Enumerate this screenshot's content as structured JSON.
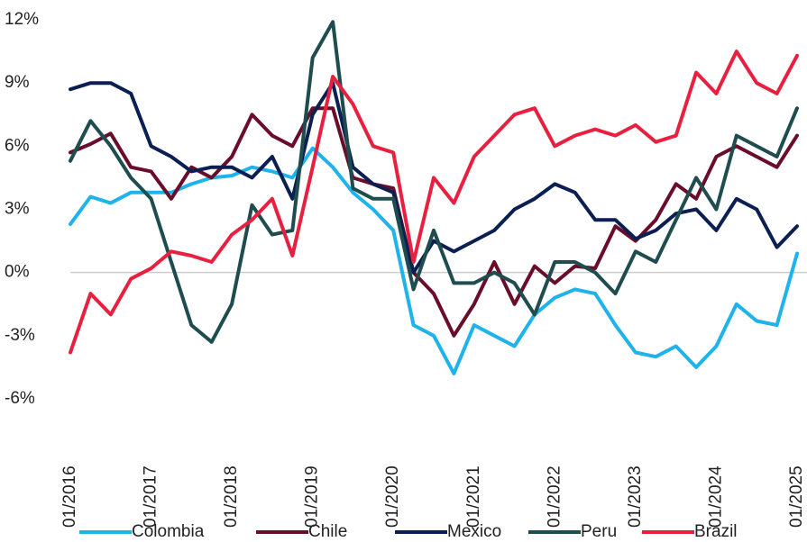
{
  "chart_data": {
    "type": "line",
    "x": [
      "01/2016",
      "04/2016",
      "07/2016",
      "10/2016",
      "01/2017",
      "04/2017",
      "07/2017",
      "10/2017",
      "01/2018",
      "04/2018",
      "07/2018",
      "10/2018",
      "01/2019",
      "04/2019",
      "07/2019",
      "10/2019",
      "01/2020",
      "04/2020",
      "07/2020",
      "10/2020",
      "01/2021",
      "04/2021",
      "07/2021",
      "10/2021",
      "01/2022",
      "04/2022",
      "07/2022",
      "10/2022",
      "01/2023",
      "04/2023",
      "07/2023",
      "10/2023",
      "01/2024",
      "04/2024",
      "07/2024",
      "10/2024",
      "01/2025"
    ],
    "series": [
      {
        "name": "Colombia",
        "color": "#1eb3ea",
        "values": [
          2.3,
          3.6,
          3.3,
          3.8,
          3.8,
          3.8,
          4.2,
          4.5,
          4.6,
          5.0,
          4.8,
          4.5,
          5.9,
          5.0,
          3.8,
          3.0,
          2.0,
          -2.5,
          -3.0,
          -4.8,
          -2.5,
          -3.0,
          -3.5,
          -2.0,
          -1.2,
          -0.8,
          -1.0,
          -2.5,
          -3.8,
          -4.0,
          -3.5,
          -4.5,
          -3.5,
          -1.5,
          -2.3,
          -2.5,
          0.9
        ]
      },
      {
        "name": "Chile",
        "color": "#6a0d2b",
        "values": [
          5.7,
          6.1,
          6.6,
          5.0,
          4.8,
          3.5,
          5.0,
          4.5,
          5.5,
          7.5,
          6.5,
          6.0,
          7.8,
          7.8,
          4.5,
          4.2,
          4.0,
          0.0,
          -1.0,
          -3.0,
          -1.5,
          0.5,
          -1.5,
          0.3,
          -0.5,
          0.3,
          0.2,
          2.2,
          1.5,
          2.5,
          4.2,
          3.5,
          5.5,
          6.0,
          5.5,
          5.0,
          6.5
        ]
      },
      {
        "name": "Mexico",
        "color": "#0c1f52",
        "values": [
          8.7,
          9.0,
          9.0,
          8.5,
          6.0,
          5.5,
          4.8,
          5.0,
          5.0,
          4.5,
          5.5,
          3.5,
          7.5,
          9.0,
          5.0,
          4.2,
          3.8,
          0.0,
          1.5,
          1.0,
          1.5,
          2.0,
          3.0,
          3.5,
          4.2,
          3.8,
          2.5,
          2.5,
          1.6,
          2.0,
          2.8,
          3.0,
          2.0,
          3.5,
          3.0,
          1.2,
          2.2
        ]
      },
      {
        "name": "Peru",
        "color": "#1f4d4f",
        "values": [
          5.3,
          7.2,
          6.0,
          4.5,
          3.5,
          0.5,
          -2.5,
          -3.3,
          -1.5,
          3.2,
          1.8,
          2.0,
          10.2,
          11.9,
          4.0,
          3.5,
          3.5,
          -0.8,
          2.0,
          -0.5,
          -0.5,
          0.0,
          -0.5,
          -2.0,
          0.5,
          0.5,
          0.0,
          -1.0,
          1.0,
          0.5,
          2.5,
          4.5,
          3.0,
          6.5,
          6.0,
          5.5,
          7.8
        ]
      },
      {
        "name": "Brazil",
        "color": "#e8203f",
        "values": [
          -3.8,
          -1.0,
          -2.0,
          -0.3,
          0.2,
          1.0,
          0.8,
          0.5,
          1.8,
          2.5,
          3.5,
          0.8,
          5.0,
          9.3,
          8.0,
          6.0,
          5.7,
          0.5,
          4.5,
          3.3,
          5.5,
          6.5,
          7.5,
          7.8,
          6.0,
          6.5,
          6.8,
          6.5,
          7.0,
          6.2,
          6.5,
          9.5,
          8.5,
          10.5,
          9.0,
          8.5,
          10.3
        ]
      }
    ],
    "ylim": [
      -6,
      12
    ],
    "yticks": [
      {
        "value": -6,
        "label": "-6%"
      },
      {
        "value": -3,
        "label": "-3%"
      },
      {
        "value": 0,
        "label": "0%"
      },
      {
        "value": 3,
        "label": "3%"
      },
      {
        "value": 6,
        "label": "6%"
      },
      {
        "value": 9,
        "label": "9%"
      },
      {
        "value": 12,
        "label": "12%"
      }
    ],
    "zero_line_color": "#cccccc"
  }
}
